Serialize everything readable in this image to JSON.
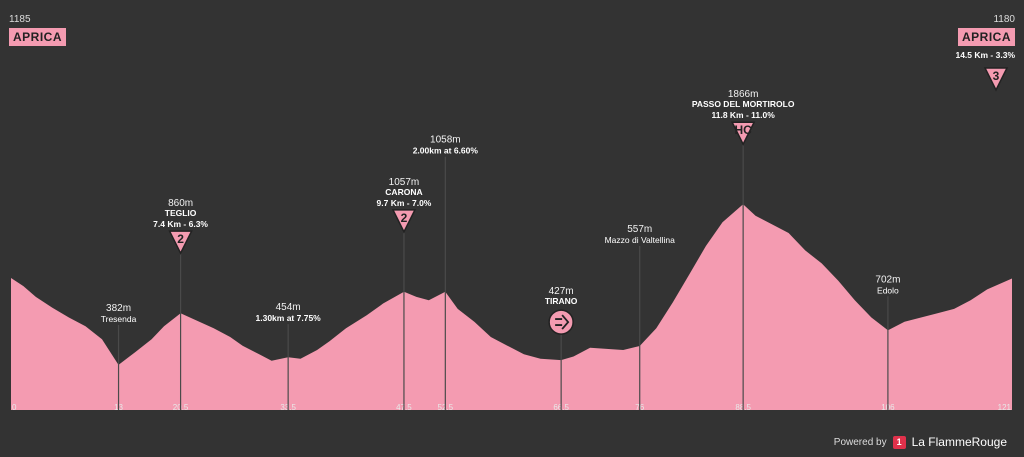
{
  "chart_data": {
    "type": "area",
    "xlim": [
      0,
      121
    ],
    "ylim": [
      0,
      2100
    ],
    "profile_color": "#f49bb1",
    "background": "#333333",
    "x_ticks": [
      "0",
      "13",
      "20.5",
      "33.5",
      "47.5",
      "52.5",
      "66.5",
      "76",
      "88.5",
      "106",
      "121"
    ],
    "x": [
      0,
      1.5,
      3,
      5,
      7,
      9,
      11,
      13,
      15,
      17,
      18.5,
      20.5,
      22.5,
      24.5,
      26.5,
      28,
      30,
      31.5,
      33.5,
      35,
      37,
      38.5,
      40.5,
      43,
      45,
      47.5,
      49,
      50.5,
      52.5,
      54,
      56,
      58,
      60,
      62,
      64,
      66.5,
      68,
      70,
      72,
      74,
      76,
      78,
      80,
      82,
      84,
      86,
      88.5,
      90,
      92,
      94,
      96,
      98,
      100,
      102,
      104,
      106,
      108,
      110,
      112,
      114,
      116,
      118,
      121
    ],
    "y": [
      1185,
      1110,
      1010,
      910,
      820,
      740,
      620,
      382,
      500,
      620,
      740,
      860,
      790,
      720,
      640,
      560,
      480,
      420,
      454,
      440,
      520,
      600,
      720,
      840,
      950,
      1057,
      1010,
      980,
      1058,
      900,
      780,
      640,
      560,
      480,
      440,
      427,
      460,
      540,
      530,
      520,
      557,
      720,
      960,
      1220,
      1480,
      1700,
      1866,
      1760,
      1680,
      1600,
      1440,
      1320,
      1160,
      980,
      820,
      702,
      780,
      820,
      860,
      900,
      980,
      1080,
      1180
    ],
    "start": {
      "name": "APRICA",
      "elevation": "1185"
    },
    "finish": {
      "name": "APRICA",
      "elevation": "1180",
      "climb": "14.5 Km - 3.3%",
      "category": "3"
    },
    "annotations": [
      {
        "x": 13,
        "y": 382,
        "alt": "382m",
        "name": "Tresenda",
        "type": "town"
      },
      {
        "x": 20.5,
        "y": 860,
        "alt": "860m",
        "name": "TEGLIO",
        "sub": "7.4 Km - 6.3%",
        "category": "2",
        "type": "climb"
      },
      {
        "x": 33.5,
        "y": 454,
        "alt": "454m",
        "sub": "1.30km at 7.75%",
        "type": "point"
      },
      {
        "x": 47.5,
        "y": 1057,
        "alt": "1057m",
        "name": "CARONA",
        "sub": "9.7 Km - 7.0%",
        "category": "2",
        "type": "climb"
      },
      {
        "x": 52.5,
        "y": 1058,
        "alt": "1058m",
        "sub": "2.00km at 6.60%",
        "type": "point"
      },
      {
        "x": 66.5,
        "y": 427,
        "alt": "427m",
        "name": "TIRANO",
        "type": "sprint"
      },
      {
        "x": 76,
        "y": 557,
        "alt": "557m",
        "name": "Mazzo di Valtellina",
        "type": "town"
      },
      {
        "x": 88.5,
        "y": 1866,
        "alt": "1866m",
        "name": "PASSO DEL MORTIROLO",
        "sub": "11.8 Km - 11.0%",
        "category": "HC",
        "type": "climb"
      },
      {
        "x": 106,
        "y": 702,
        "alt": "702m",
        "name": "Edolo",
        "type": "town"
      }
    ]
  },
  "branding": {
    "powered_by": "Powered by",
    "logo_mark": "1",
    "name": "La FlammeRouge"
  }
}
